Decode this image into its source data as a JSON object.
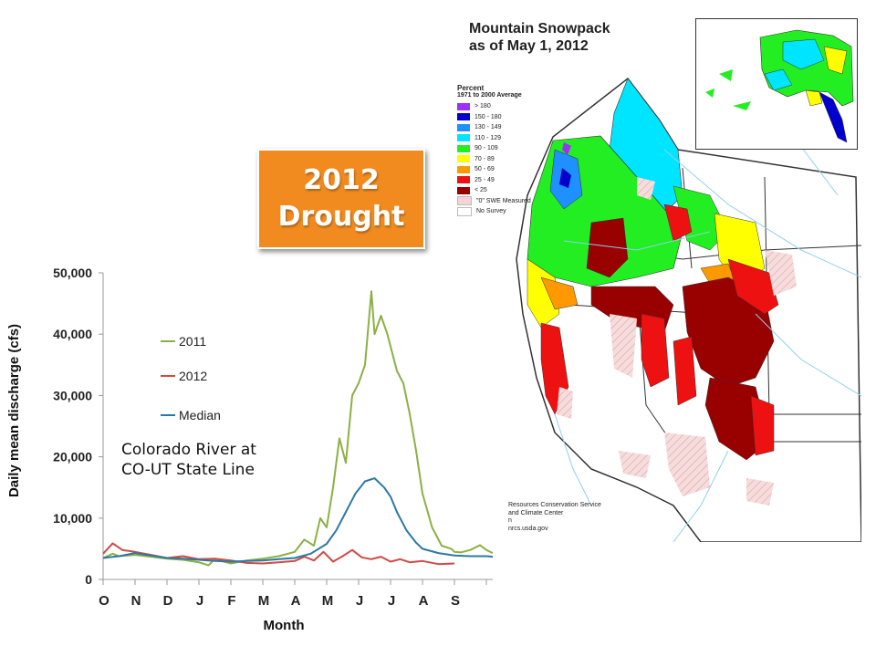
{
  "badge": {
    "line1": "2012",
    "line2": "Drought"
  },
  "map": {
    "title_line1": "Mountain Snowpack",
    "title_line2": "as of May 1, 2012",
    "legend_title": "Percent",
    "legend_subtitle": "1971 to 2000 Average",
    "legend": [
      {
        "label": "> 180",
        "color": "#9b30ff"
      },
      {
        "label": "150 - 180",
        "color": "#0000cc"
      },
      {
        "label": "130 - 149",
        "color": "#1e90ff"
      },
      {
        "label": "110 - 129",
        "color": "#00e5ff"
      },
      {
        "label": "90 - 109",
        "color": "#22ee22"
      },
      {
        "label": "70 - 89",
        "color": "#ffff00"
      },
      {
        "label": "50 - 69",
        "color": "#ff9900"
      },
      {
        "label": "25 - 49",
        "color": "#ee1111"
      },
      {
        "label": "< 25",
        "color": "#990000"
      },
      {
        "label": "\"0\" SWE Measured",
        "color": "#f4d4d4"
      },
      {
        "label": "No Survey",
        "color": "#ffffff"
      }
    ],
    "credit_line1": "Resources Conservation Service",
    "credit_line2": "and Climate Center",
    "credit_line3": "n",
    "credit_line4": "nrcs.usda.gov"
  },
  "river_label": {
    "line1": "Colorado River at",
    "line2": "CO-UT State Line"
  },
  "chart_data": {
    "type": "line",
    "xlabel": "Month",
    "ylabel": "Daily mean discharge (cfs)",
    "categories": [
      "O",
      "N",
      "D",
      "J",
      "F",
      "M",
      "A",
      "M",
      "J",
      "J",
      "A",
      "S"
    ],
    "x": [
      0,
      0.5,
      1,
      1.5,
      2,
      2.5,
      3,
      3.5,
      4,
      4.5,
      5,
      5.5,
      6,
      6.5,
      7,
      7.5,
      8,
      8.5,
      9,
      9.5,
      10,
      10.5,
      11,
      11.5,
      12
    ],
    "yticks": [
      0,
      10000,
      20000,
      30000,
      40000,
      50000
    ],
    "ytick_labels": [
      "0",
      "10,000",
      "20,000",
      "30,000",
      "40,000",
      "50,000"
    ],
    "ylim": [
      0,
      50000
    ],
    "xlim": [
      0,
      12.2
    ],
    "series": [
      {
        "name": "2011",
        "color": "#8cb043",
        "x": [
          0,
          0.3,
          0.5,
          1,
          1.5,
          2,
          2.5,
          3,
          3.3,
          3.5,
          4,
          4.5,
          5,
          5.5,
          6,
          6.3,
          6.6,
          6.8,
          7,
          7.2,
          7.4,
          7.6,
          7.8,
          8,
          8.2,
          8.4,
          8.5,
          8.7,
          8.9,
          9,
          9.2,
          9.4,
          9.6,
          9.8,
          10,
          10.3,
          10.6,
          10.9,
          11,
          11.2,
          11.5,
          11.8,
          12,
          12.2
        ],
        "values": [
          3500,
          4200,
          3800,
          4000,
          3700,
          3400,
          3200,
          2800,
          2300,
          3300,
          2600,
          3100,
          3400,
          3800,
          4500,
          6500,
          5500,
          10000,
          8500,
          15000,
          23000,
          19000,
          30000,
          32000,
          35000,
          47000,
          40000,
          43000,
          40000,
          38000,
          34000,
          32000,
          27000,
          21000,
          14000,
          8500,
          5500,
          5000,
          4500,
          4400,
          4800,
          5600,
          4800,
          4300
        ]
      },
      {
        "name": "2012",
        "color": "#d04a43",
        "x": [
          0,
          0.3,
          0.6,
          1,
          1.5,
          2,
          2.5,
          3,
          3.5,
          4,
          4.5,
          5,
          5.5,
          6,
          6.3,
          6.6,
          6.9,
          7.2,
          7.5,
          7.8,
          8.1,
          8.4,
          8.7,
          9,
          9.3,
          9.6,
          10,
          10.5,
          11
        ],
        "values": [
          4200,
          5900,
          4800,
          4500,
          4000,
          3500,
          3800,
          3300,
          3400,
          3100,
          2700,
          2600,
          2800,
          3000,
          3700,
          3100,
          4500,
          2900,
          3800,
          4800,
          3600,
          3300,
          3700,
          2900,
          3300,
          2800,
          3000,
          2500,
          2600
        ]
      },
      {
        "name": "Median",
        "color": "#2c78a5",
        "x": [
          0,
          0.5,
          1,
          1.5,
          2,
          2.5,
          3,
          3.5,
          4,
          4.5,
          5,
          5.5,
          6,
          6.5,
          7,
          7.3,
          7.6,
          7.9,
          8.2,
          8.5,
          8.8,
          9,
          9.2,
          9.5,
          9.8,
          10,
          10.5,
          11,
          11.5,
          12,
          12.2
        ],
        "values": [
          3500,
          3800,
          4300,
          3900,
          3500,
          3400,
          3200,
          3000,
          2900,
          3000,
          3100,
          3300,
          3500,
          4200,
          5800,
          8000,
          11000,
          14000,
          16000,
          16500,
          15000,
          13500,
          11000,
          8000,
          6000,
          5000,
          4300,
          3900,
          3800,
          3800,
          3700
        ]
      }
    ]
  }
}
